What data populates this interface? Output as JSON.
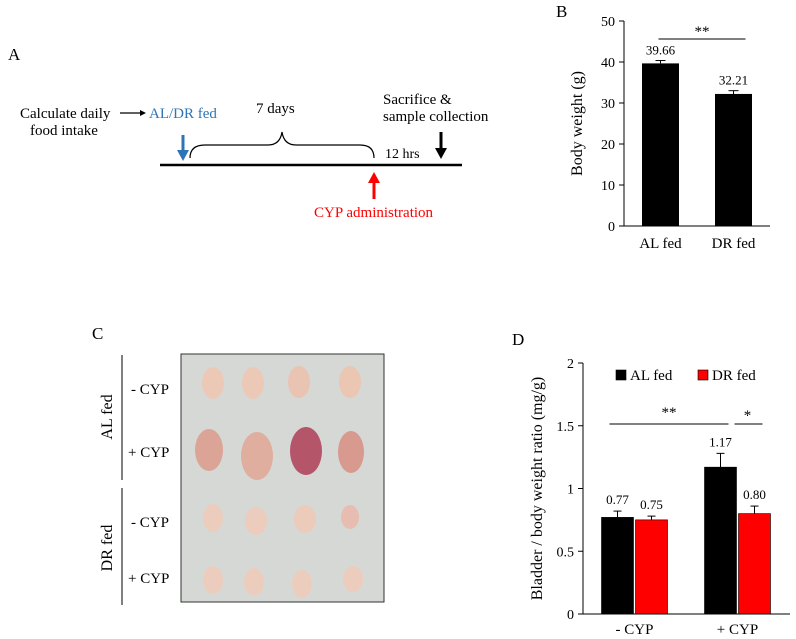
{
  "panels": {
    "A": {
      "letter": "A",
      "step1_line1": "Calculate daily",
      "step1_line2": "food intake",
      "feed_label": "AL/DR fed",
      "duration": "7 days",
      "sacrifice_line1": "Sacrifice &",
      "sacrifice_line2": "sample collection",
      "interval": "12 hrs",
      "cyp": "CYP administration",
      "colors": {
        "feed": "#2e75b6",
        "cyp": "#ff0000",
        "sacrifice": "#000000"
      }
    },
    "B": {
      "letter": "B"
    },
    "C": {
      "letter": "C",
      "groups": [
        "AL fed",
        "DR fed"
      ],
      "rows": [
        "- CYP",
        "+ CYP",
        "- CYP",
        "+ CYP"
      ]
    },
    "D": {
      "letter": "D"
    }
  },
  "chart_data": [
    {
      "id": "B",
      "type": "bar",
      "categories": [
        "AL fed",
        "DR fed"
      ],
      "values": [
        39.66,
        32.21
      ],
      "value_labels": [
        "39.66",
        "32.21"
      ],
      "errors": [
        0.7,
        0.8
      ],
      "ylabel": "Body weight (g)",
      "ylim": [
        0,
        50
      ],
      "yticks": [
        0,
        10,
        20,
        30,
        40,
        50
      ],
      "ytick_labels": [
        "0",
        "10",
        "20",
        "30",
        "40",
        "50"
      ],
      "bar_color": "#000000",
      "significance": "**"
    },
    {
      "id": "D",
      "type": "bar",
      "categories": [
        "- CYP",
        "+ CYP"
      ],
      "series": [
        {
          "name": "AL fed",
          "color": "#000000",
          "values": [
            0.77,
            1.17
          ],
          "errors": [
            0.05,
            0.11
          ],
          "value_labels": [
            "0.77",
            "1.17"
          ]
        },
        {
          "name": "DR fed",
          "color": "#ff0000",
          "values": [
            0.75,
            0.8
          ],
          "errors": [
            0.03,
            0.06
          ],
          "value_labels": [
            "0.75",
            "0.80"
          ]
        }
      ],
      "ylabel": "Bladder / body weight ratio (mg/g)",
      "ylim": [
        0,
        2
      ],
      "yticks": [
        0,
        0.5,
        1,
        1.5,
        2
      ],
      "ytick_labels": [
        "0",
        "0.5",
        "1",
        "1.5",
        "2"
      ],
      "legend_position": "top",
      "significance": [
        "**",
        "*"
      ]
    }
  ]
}
